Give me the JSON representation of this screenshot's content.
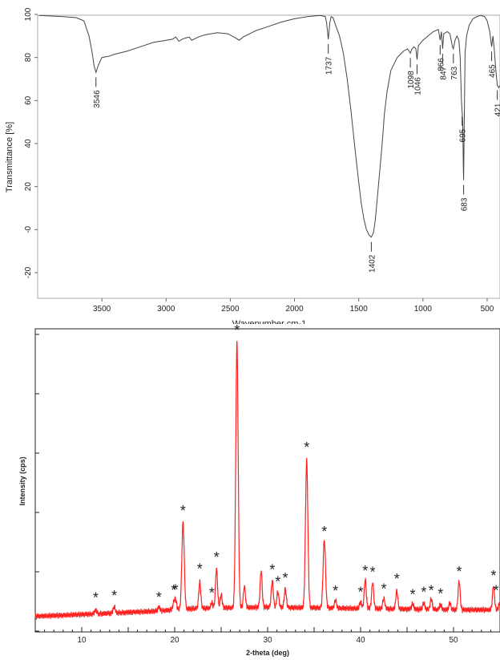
{
  "chart_data": [
    {
      "type": "line",
      "xlabel": "Wavenumber cm-1",
      "ylabel": "Transmittance [%]",
      "xlim": [
        4000,
        400
      ],
      "ylim": [
        -30,
        100
      ],
      "xticks": [
        "3500",
        "3000",
        "2500",
        "2000",
        "1500",
        "1000",
        "500"
      ],
      "yticks": [
        "100",
        "80",
        "60",
        "40",
        "20",
        "-0",
        "-20"
      ],
      "grid": false,
      "series": [
        {
          "color": "#444444",
          "points": [
            [
              3990,
              99.5
            ],
            [
              3800,
              99
            ],
            [
              3700,
              98.5
            ],
            [
              3640,
              97
            ],
            [
              3600,
              90
            ],
            [
              3575,
              82
            ],
            [
              3560,
              76
            ],
            [
              3546,
              73
            ],
            [
              3530,
              76
            ],
            [
              3500,
              80
            ],
            [
              3450,
              80.5
            ],
            [
              3400,
              81.5
            ],
            [
              3300,
              83
            ],
            [
              3200,
              85
            ],
            [
              3100,
              87
            ],
            [
              3000,
              88
            ],
            [
              2950,
              88.5
            ],
            [
              2925,
              89.5
            ],
            [
              2900,
              87.5
            ],
            [
              2875,
              88.5
            ],
            [
              2850,
              89
            ],
            [
              2820,
              89.5
            ],
            [
              2800,
              88
            ],
            [
              2750,
              89.5
            ],
            [
              2700,
              90.5
            ],
            [
              2600,
              91.5
            ],
            [
              2520,
              91
            ],
            [
              2470,
              89.5
            ],
            [
              2430,
              88
            ],
            [
              2400,
              89.5
            ],
            [
              2300,
              92.5
            ],
            [
              2200,
              94.5
            ],
            [
              2100,
              96.5
            ],
            [
              2000,
              98
            ],
            [
              1900,
              99
            ],
            [
              1800,
              99.5
            ],
            [
              1760,
              99
            ],
            [
              1750,
              96
            ],
            [
              1737,
              88.5
            ],
            [
              1725,
              96
            ],
            [
              1715,
              99
            ],
            [
              1700,
              98.5
            ],
            [
              1680,
              95
            ],
            [
              1650,
              90
            ],
            [
              1620,
              82
            ],
            [
              1590,
              70
            ],
            [
              1560,
              55
            ],
            [
              1530,
              38
            ],
            [
              1500,
              22
            ],
            [
              1480,
              12
            ],
            [
              1460,
              5
            ],
            [
              1440,
              0
            ],
            [
              1420,
              -2.5
            ],
            [
              1402,
              -3.5
            ],
            [
              1385,
              -1.5
            ],
            [
              1370,
              5
            ],
            [
              1350,
              18
            ],
            [
              1320,
              38
            ],
            [
              1300,
              54
            ],
            [
              1280,
              64
            ],
            [
              1250,
              74
            ],
            [
              1200,
              80
            ],
            [
              1150,
              83
            ],
            [
              1120,
              84
            ],
            [
              1098,
              82
            ],
            [
              1085,
              84
            ],
            [
              1070,
              85
            ],
            [
              1055,
              84
            ],
            [
              1046,
              79
            ],
            [
              1036,
              85.5
            ],
            [
              1000,
              88
            ],
            [
              960,
              90
            ],
            [
              920,
              92
            ],
            [
              900,
              92.5
            ],
            [
              880,
              93
            ],
            [
              866,
              88
            ],
            [
              856,
              92
            ],
            [
              847,
              84
            ],
            [
              838,
              91
            ],
            [
              810,
              92
            ],
            [
              790,
              91
            ],
            [
              770,
              85
            ],
            [
              763,
              84
            ],
            [
              750,
              88
            ],
            [
              735,
              90
            ],
            [
              720,
              88
            ],
            [
              710,
              80
            ],
            [
              700,
              60
            ],
            [
              695,
              55
            ],
            [
              690,
              50
            ],
            [
              686,
              30
            ],
            [
              683,
              23
            ],
            [
              678,
              50
            ],
            [
              672,
              82
            ],
            [
              660,
              90
            ],
            [
              640,
              95
            ],
            [
              610,
              98
            ],
            [
              580,
              99
            ],
            [
              550,
              99.5
            ],
            [
              520,
              99
            ],
            [
              500,
              97
            ],
            [
              480,
              92
            ],
            [
              465,
              85
            ],
            [
              455,
              90
            ],
            [
              445,
              84
            ],
            [
              435,
              76
            ],
            [
              421,
              67
            ],
            [
              410,
              66
            ],
            [
              400,
              67
            ]
          ]
        }
      ],
      "annotations": [
        {
          "label": "3546",
          "x": 3546,
          "y": 73
        },
        {
          "label": "1737",
          "x": 1737,
          "y": 88.5
        },
        {
          "label": "1402",
          "x": 1402,
          "y": -3.5
        },
        {
          "label": "1098",
          "x": 1098,
          "y": 82
        },
        {
          "label": "1046",
          "x": 1046,
          "y": 79
        },
        {
          "label": "866",
          "x": 866,
          "y": 88
        },
        {
          "label": "847",
          "x": 847,
          "y": 84
        },
        {
          "label": "763",
          "x": 763,
          "y": 84
        },
        {
          "label": "695",
          "x": 695,
          "y": 55
        },
        {
          "label": "683",
          "x": 683,
          "y": 23
        },
        {
          "label": "465",
          "x": 465,
          "y": 85
        },
        {
          "label": "421",
          "x": 421,
          "y": 67
        }
      ]
    },
    {
      "type": "line",
      "xlabel": "2-theta (deg)",
      "ylabel": "Intensity (cps)",
      "xlim": [
        5,
        55
      ],
      "ylim": [
        0,
        115
      ],
      "xticks": [
        "10",
        "20",
        "30",
        "40",
        "50"
      ],
      "grid": false,
      "marker_label": "*",
      "series": [
        {
          "color": "#ff2020",
          "baseline": [
            [
              5,
              3.5
            ],
            [
              12,
              4.5
            ],
            [
              18,
              5.5
            ],
            [
              22,
              6.5
            ],
            [
              30,
              7
            ],
            [
              40,
              6.5
            ],
            [
              50,
              6
            ],
            [
              55,
              6
            ]
          ],
          "peaks": [
            {
              "x": 11.5,
              "h": 1.5
            },
            {
              "x": 13.5,
              "h": 2.5
            },
            {
              "x": 18.3,
              "h": 1.5
            },
            {
              "x": 19.9,
              "h": 2.5
            },
            {
              "x": 20.1,
              "h": 3.5
            },
            {
              "x": 20.9,
              "h": 33
            },
            {
              "x": 22.7,
              "h": 10
            },
            {
              "x": 24.0,
              "h": 2
            },
            {
              "x": 24.5,
              "h": 15
            },
            {
              "x": 25.0,
              "h": 5
            },
            {
              "x": 26.7,
              "h": 101
            },
            {
              "x": 27.5,
              "h": 8
            },
            {
              "x": 29.3,
              "h": 14
            },
            {
              "x": 30.5,
              "h": 10
            },
            {
              "x": 31.1,
              "h": 6
            },
            {
              "x": 31.9,
              "h": 7
            },
            {
              "x": 34.2,
              "h": 56
            },
            {
              "x": 36.1,
              "h": 26
            },
            {
              "x": 37.3,
              "h": 3
            },
            {
              "x": 40.0,
              "h": 2.5
            },
            {
              "x": 40.5,
              "h": 11
            },
            {
              "x": 41.3,
              "h": 10
            },
            {
              "x": 42.5,
              "h": 4
            },
            {
              "x": 43.9,
              "h": 7
            },
            {
              "x": 45.6,
              "h": 2
            },
            {
              "x": 46.8,
              "h": 2.5
            },
            {
              "x": 47.6,
              "h": 4
            },
            {
              "x": 48.6,
              "h": 2
            },
            {
              "x": 49.6,
              "h": 2.5
            },
            {
              "x": 50.6,
              "h": 11
            },
            {
              "x": 54.3,
              "h": 9
            },
            {
              "x": 55.0,
              "h": 3
            }
          ]
        }
      ],
      "peak_markers": [
        11.5,
        13.5,
        18.3,
        19.9,
        20.1,
        20.9,
        22.7,
        24.0,
        24.5,
        26.7,
        30.5,
        31.1,
        31.9,
        34.2,
        36.1,
        37.3,
        40.0,
        40.5,
        41.3,
        42.5,
        43.9,
        45.6,
        46.8,
        47.6,
        48.6,
        50.6,
        54.3,
        55.0
      ]
    }
  ]
}
